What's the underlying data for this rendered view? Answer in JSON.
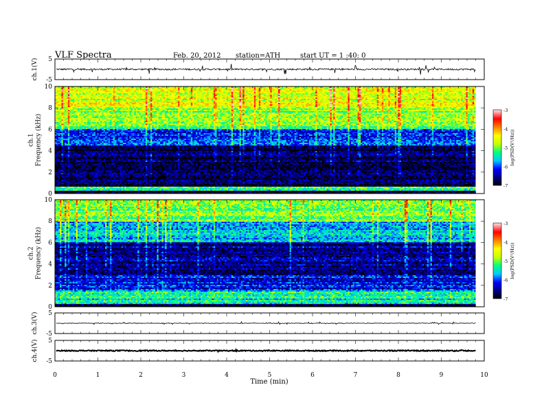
{
  "header": {
    "title": "VLF Spectra",
    "date": "Feb. 20, 2012",
    "station": "station=ATH",
    "start": "start UT = 1 :40: 0"
  },
  "chart_data": [
    {
      "type": "line",
      "panel": "ch1-waveform",
      "ylabel": "ch.1(V)",
      "ylim": [
        -5,
        5
      ],
      "yticks": [
        "5",
        "-5"
      ],
      "xlim": [
        0,
        10
      ],
      "baseline": 0,
      "noise_amplitude": 0.4,
      "spike_amplitude": 2.5
    },
    {
      "type": "heatmap",
      "panel": "ch1-spectrogram",
      "ylabel": "ch.1\nFrequency (kHz)",
      "ylim": [
        0,
        10
      ],
      "yticks": [
        "0",
        "2",
        "4",
        "6",
        "8",
        "10"
      ],
      "xlim": [
        0,
        9.8
      ],
      "colorbar": {
        "label": "log(PSD(V²/Hz))",
        "range": [
          -7,
          -3
        ],
        "ticks": [
          "-3",
          "-4",
          "-5",
          "-6",
          "-7"
        ]
      },
      "bands": [
        {
          "f": [
            0.0,
            0.3
          ],
          "level": -6.9
        },
        {
          "f": [
            0.3,
            0.6
          ],
          "level": -5.2
        },
        {
          "f": [
            0.6,
            4.5
          ],
          "level": -6.7
        },
        {
          "f": [
            4.5,
            6.0
          ],
          "level": -6.0
        },
        {
          "f": [
            6.0,
            8.0
          ],
          "level": -5.0
        },
        {
          "f": [
            8.0,
            10.0
          ],
          "level": -4.6
        }
      ]
    },
    {
      "type": "heatmap",
      "panel": "ch2-spectrogram",
      "ylabel": "ch.2\nFrequency (kHz)",
      "ylim": [
        0,
        10
      ],
      "yticks": [
        "0",
        "2",
        "4",
        "6",
        "8",
        "10"
      ],
      "xlim": [
        0,
        9.8
      ],
      "colorbar": {
        "label": "log(PSD(V²/Hz))",
        "range": [
          -7,
          -3
        ],
        "ticks": [
          "-3",
          "-4",
          "-5",
          "-6",
          "-7"
        ]
      },
      "bands": [
        {
          "f": [
            0.0,
            0.3
          ],
          "level": -6.9
        },
        {
          "f": [
            0.3,
            1.5
          ],
          "level": -5.4
        },
        {
          "f": [
            1.5,
            3.0
          ],
          "level": -6.2
        },
        {
          "f": [
            3.0,
            6.0
          ],
          "level": -6.5
        },
        {
          "f": [
            6.0,
            8.0
          ],
          "level": -5.6
        },
        {
          "f": [
            8.0,
            10.0
          ],
          "level": -5.0
        }
      ]
    },
    {
      "type": "line",
      "panel": "ch3-waveform",
      "ylabel": "ch.3(V)",
      "ylim": [
        -5,
        5
      ],
      "yticks": [
        "5",
        "-5"
      ],
      "xlim": [
        0,
        10
      ],
      "baseline": 0,
      "noise_amplitude": 0.15,
      "spike_amplitude": 0.6
    },
    {
      "type": "line",
      "panel": "ch4-waveform",
      "ylabel": "ch.4(V)",
      "ylim": [
        -5,
        5
      ],
      "yticks": [
        "5",
        "-5"
      ],
      "xlim": [
        0,
        10
      ],
      "baseline": 0,
      "noise_amplitude": 0.25,
      "spike_amplitude": 0.3
    }
  ],
  "xaxis": {
    "label": "Time (min)",
    "ticks": [
      "0",
      "1",
      "2",
      "3",
      "4",
      "5",
      "6",
      "7",
      "8",
      "9",
      "10"
    ]
  },
  "colors": {
    "colormap": [
      "#000000",
      "#000080",
      "#0000ff",
      "#00c8ff",
      "#00ff80",
      "#c8ff00",
      "#ffff00",
      "#ff8000",
      "#ff0000",
      "#ffd8d8"
    ]
  }
}
